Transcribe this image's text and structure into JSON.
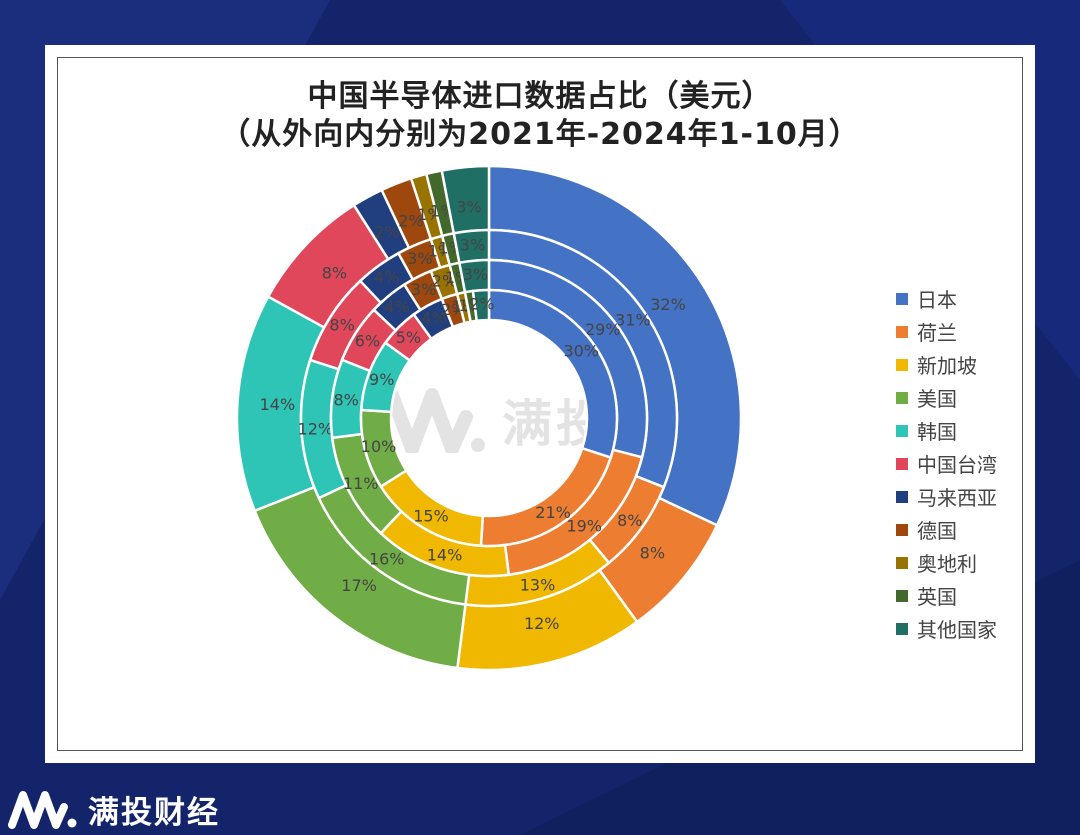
{
  "page": {
    "brand_name": "满投财经",
    "watermark_text": "满投财经"
  },
  "chart_data": {
    "type": "pie",
    "subtype": "multi-ring donut",
    "title": "中国半导体进口数据占比（美元）",
    "subtitle": "（从外向内分别为2021年-2024年1-10月）",
    "legend_position": "right",
    "categories": [
      "日本",
      "荷兰",
      "新加坡",
      "美国",
      "韩国",
      "中国台湾",
      "马来西亚",
      "德国",
      "奥地利",
      "英国",
      "其他国家"
    ],
    "colors": [
      "#4472c4",
      "#ed7d31",
      "#f0b800",
      "#70ad47",
      "#2ec4b6",
      "#e0475b",
      "#213f7f",
      "#9e480e",
      "#997300",
      "#43682b",
      "#1f6f65"
    ],
    "series": [
      {
        "values": [
          32,
          8,
          12,
          17,
          14,
          8,
          2,
          2,
          1,
          1,
          3
        ],
        "labels": [
          "32%",
          "8%",
          "12%",
          "17%",
          "14%",
          "8%",
          "2%",
          "2%",
          "1%",
          "1%",
          "3%"
        ]
      },
      {
        "values": [
          31,
          8,
          13,
          16,
          12,
          8,
          4,
          3,
          1,
          1,
          3
        ],
        "labels": [
          "31%",
          "8%",
          "13%",
          "16%",
          "12%",
          "8%",
          "4%",
          "3%",
          "1%",
          "1%",
          "3%"
        ]
      },
      {
        "values": [
          29,
          19,
          14,
          11,
          8,
          6,
          4,
          3,
          2,
          1,
          3
        ],
        "labels": [
          "29%",
          "19%",
          "14%",
          "11%",
          "8%",
          "6%",
          "4%",
          "3%",
          "2%",
          "1%",
          "3%"
        ]
      },
      {
        "values": [
          30,
          21,
          15,
          10,
          9,
          5,
          4,
          2,
          1,
          1,
          2
        ],
        "labels": [
          "30%",
          "21%",
          "15%",
          "10%",
          "9%",
          "5%",
          "4%",
          "2%",
          "1%",
          "1%",
          "2%"
        ]
      }
    ]
  }
}
